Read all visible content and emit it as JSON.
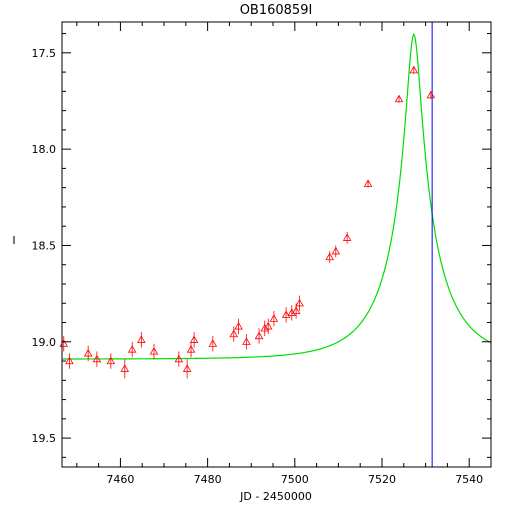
{
  "chart_data": {
    "type": "scatter",
    "title": "OB160859I",
    "xlabel": "JD - 2450000",
    "ylabel": "I",
    "xlim": [
      7546,
      7545
    ],
    "xlim_data": [
      7446.6,
      7545.0
    ],
    "ylim": [
      17.34,
      19.65
    ],
    "y_inverted": true,
    "grid": false,
    "x_ticks": [
      7460,
      7480,
      7500,
      7520,
      7540
    ],
    "x_tick_labels": [
      "7460",
      "7480",
      "7500",
      "7520",
      "7540"
    ],
    "y_ticks": [
      17.5,
      18.0,
      18.5,
      19.0,
      19.5
    ],
    "y_tick_labels": [
      "17.5",
      "18.0",
      "18.5",
      "19.0",
      "19.5"
    ],
    "marker": "triangle",
    "vline_x": 7531.5,
    "colors": {
      "points": "#ff0000",
      "model": "#00dd00",
      "vline": "#0000ff",
      "axes": "#000000"
    },
    "model": {
      "t0": 7527.3,
      "u0": 0.119,
      "tE": 12.85,
      "fs": 0.5,
      "base": 19.09
    },
    "series": [
      {
        "values": [
          {
            "x": 7447.0,
            "y": 19.01,
            "err": 0.04
          },
          {
            "x": 7448.3,
            "y": 19.1,
            "err": 0.04
          },
          {
            "x": 7452.6,
            "y": 19.06,
            "err": 0.04
          },
          {
            "x": 7454.6,
            "y": 19.09,
            "err": 0.04
          },
          {
            "x": 7457.8,
            "y": 19.1,
            "err": 0.04
          },
          {
            "x": 7461.0,
            "y": 19.14,
            "err": 0.05
          },
          {
            "x": 7462.7,
            "y": 19.04,
            "err": 0.04
          },
          {
            "x": 7464.8,
            "y": 18.99,
            "err": 0.04
          },
          {
            "x": 7467.7,
            "y": 19.05,
            "err": 0.04
          },
          {
            "x": 7473.4,
            "y": 19.09,
            "err": 0.04
          },
          {
            "x": 7475.3,
            "y": 19.14,
            "err": 0.05
          },
          {
            "x": 7476.2,
            "y": 19.04,
            "err": 0.04
          },
          {
            "x": 7476.9,
            "y": 18.99,
            "err": 0.04
          },
          {
            "x": 7481.2,
            "y": 19.01,
            "err": 0.04
          },
          {
            "x": 7486.0,
            "y": 18.96,
            "err": 0.04
          },
          {
            "x": 7487.1,
            "y": 18.92,
            "err": 0.04
          },
          {
            "x": 7488.9,
            "y": 19.0,
            "err": 0.04
          },
          {
            "x": 7491.8,
            "y": 18.97,
            "err": 0.04
          },
          {
            "x": 7493.1,
            "y": 18.93,
            "err": 0.04
          },
          {
            "x": 7493.9,
            "y": 18.92,
            "err": 0.04
          },
          {
            "x": 7495.2,
            "y": 18.88,
            "err": 0.04
          },
          {
            "x": 7498.0,
            "y": 18.86,
            "err": 0.04
          },
          {
            "x": 7499.3,
            "y": 18.85,
            "err": 0.04
          },
          {
            "x": 7500.3,
            "y": 18.84,
            "err": 0.04
          },
          {
            "x": 7501.1,
            "y": 18.8,
            "err": 0.04
          },
          {
            "x": 7508.0,
            "y": 18.56,
            "err": 0.03
          },
          {
            "x": 7509.4,
            "y": 18.53,
            "err": 0.03
          },
          {
            "x": 7512.0,
            "y": 18.46,
            "err": 0.03
          },
          {
            "x": 7516.8,
            "y": 18.18,
            "err": 0.02
          },
          {
            "x": 7523.9,
            "y": 17.74,
            "err": 0.02
          },
          {
            "x": 7527.3,
            "y": 17.59,
            "err": 0.02
          },
          {
            "x": 7531.2,
            "y": 17.72,
            "err": 0.02
          }
        ]
      }
    ]
  }
}
